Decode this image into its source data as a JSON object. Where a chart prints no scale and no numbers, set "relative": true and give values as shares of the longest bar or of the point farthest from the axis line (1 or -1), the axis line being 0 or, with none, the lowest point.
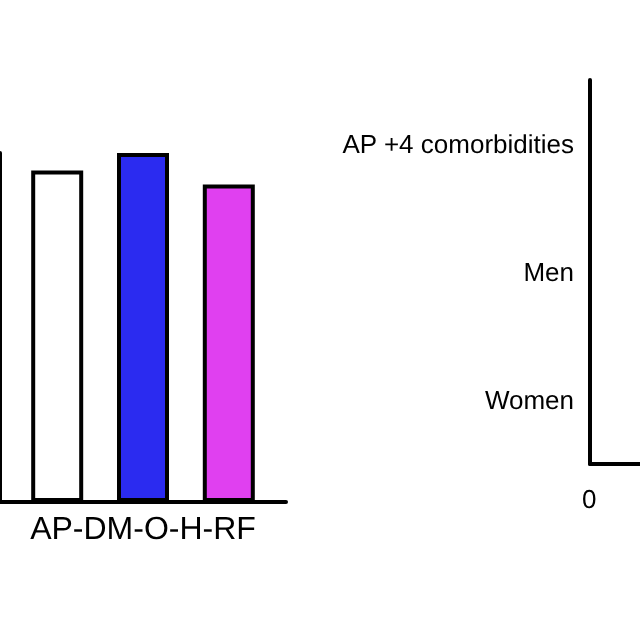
{
  "chart_data": [
    {
      "type": "bar",
      "relative": true,
      "categories": [
        "AP-DM-O-H-RF"
      ],
      "series": [
        {
          "color": "#ffffff",
          "values": [
            0.95
          ]
        },
        {
          "color": "#2b2bf0",
          "values": [
            1
          ]
        },
        {
          "color": "#e040f0",
          "values": [
            0.91
          ]
        }
      ]
    },
    {
      "type": "other",
      "categories": [
        "AP +4 comorbidities",
        "Men",
        "Women"
      ],
      "annotations": [
        "0"
      ]
    }
  ]
}
